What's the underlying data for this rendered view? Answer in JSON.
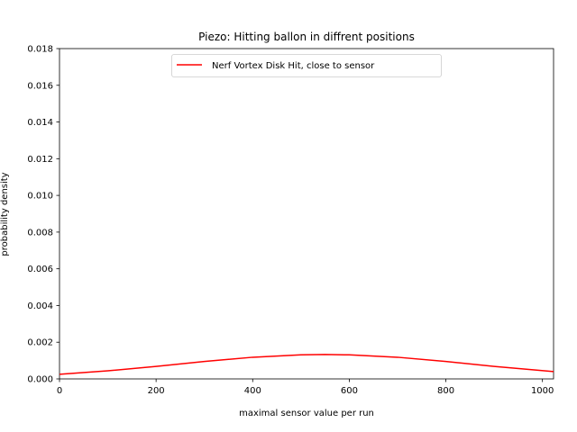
{
  "chart_data": {
    "type": "line",
    "title": "Piezo: Hitting ballon in diffrent positions",
    "xlabel": "maximal sensor value per run",
    "ylabel": "probability density",
    "xlim": [
      0,
      1023
    ],
    "ylim": [
      0,
      0.018
    ],
    "x_ticks": [
      0,
      200,
      400,
      600,
      800,
      1000
    ],
    "x_tick_labels": [
      "0",
      "200",
      "400",
      "600",
      "800",
      "1000"
    ],
    "y_ticks": [
      0,
      0.002,
      0.004,
      0.006,
      0.008,
      0.01,
      0.012,
      0.014,
      0.016,
      0.018
    ],
    "y_tick_labels": [
      "0.000",
      "0.002",
      "0.004",
      "0.006",
      "0.008",
      "0.010",
      "0.012",
      "0.014",
      "0.016",
      "0.018"
    ],
    "grid": false,
    "legend_position": "top-center",
    "series": [
      {
        "name": "Nerf Vortex Disk Hit, close to sensor",
        "color": "#ff0000",
        "x": [
          0,
          100,
          200,
          300,
          400,
          500,
          550,
          600,
          700,
          800,
          900,
          1023
        ],
        "y": [
          0.00025,
          0.00044,
          0.00068,
          0.00095,
          0.00118,
          0.00131,
          0.00133,
          0.00131,
          0.00118,
          0.00095,
          0.00068,
          0.0004
        ]
      }
    ]
  }
}
